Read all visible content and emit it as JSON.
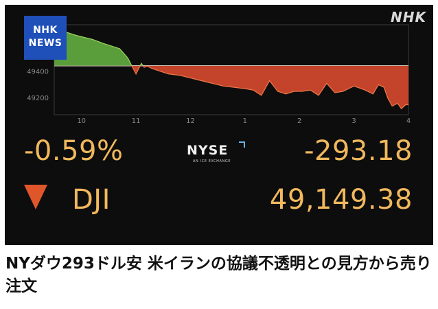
{
  "broadcaster": {
    "badge_line1": "NHK",
    "badge_line2": "NEWS",
    "logo": "NHK"
  },
  "exchange": {
    "logo": "NYSE",
    "tagline": "AN ICE EXCHANGE"
  },
  "ticker": {
    "symbol": "DJI",
    "percent_change": "-0.59%",
    "point_change": "-293.18",
    "value": "49,149.38",
    "direction": "down",
    "down_color": "#e0562b",
    "text_color": "#f1b85d"
  },
  "headline": "NYダウ293ドル安 米イランの協議不透明との見方から売り注文",
  "chart_data": {
    "type": "area",
    "title": "",
    "xlabel": "",
    "ylabel": "",
    "x_tick_labels": [
      "10",
      "11",
      "12",
      "1",
      "2",
      "3",
      "4"
    ],
    "y_tick_labels": [
      "49400",
      "49200"
    ],
    "ylim": [
      49075,
      49750
    ],
    "baseline": 49442,
    "grid": false,
    "up_color": "#5a9e3c",
    "down_color": "#c4432b",
    "series": [
      {
        "x": [
          9.5,
          9.6,
          9.75,
          9.9,
          10.0,
          10.2,
          10.4,
          10.55,
          10.7,
          10.85,
          10.95,
          11.0,
          11.05,
          11.1,
          11.15,
          11.2,
          11.3,
          11.45,
          11.6,
          11.8,
          12.0,
          12.2,
          12.4,
          12.6,
          12.8,
          13.0,
          13.15,
          13.3,
          13.45,
          13.6,
          13.75,
          13.9,
          14.05,
          14.2,
          14.35,
          14.5,
          14.65,
          14.8,
          15.0,
          15.2,
          15.35,
          15.45,
          15.55,
          15.62,
          15.7,
          15.8,
          15.87,
          15.95,
          16.0
        ],
        "values": [
          49720,
          49710,
          49690,
          49670,
          49660,
          49640,
          49610,
          49590,
          49570,
          49500,
          49420,
          49380,
          49420,
          49460,
          49430,
          49440,
          49420,
          49400,
          49380,
          49370,
          49350,
          49330,
          49310,
          49290,
          49280,
          49270,
          49260,
          49220,
          49330,
          49250,
          49230,
          49250,
          49250,
          49260,
          49220,
          49310,
          49240,
          49250,
          49290,
          49260,
          49230,
          49300,
          49280,
          49200,
          49140,
          49160,
          49120,
          49150,
          49149
        ]
      }
    ]
  }
}
